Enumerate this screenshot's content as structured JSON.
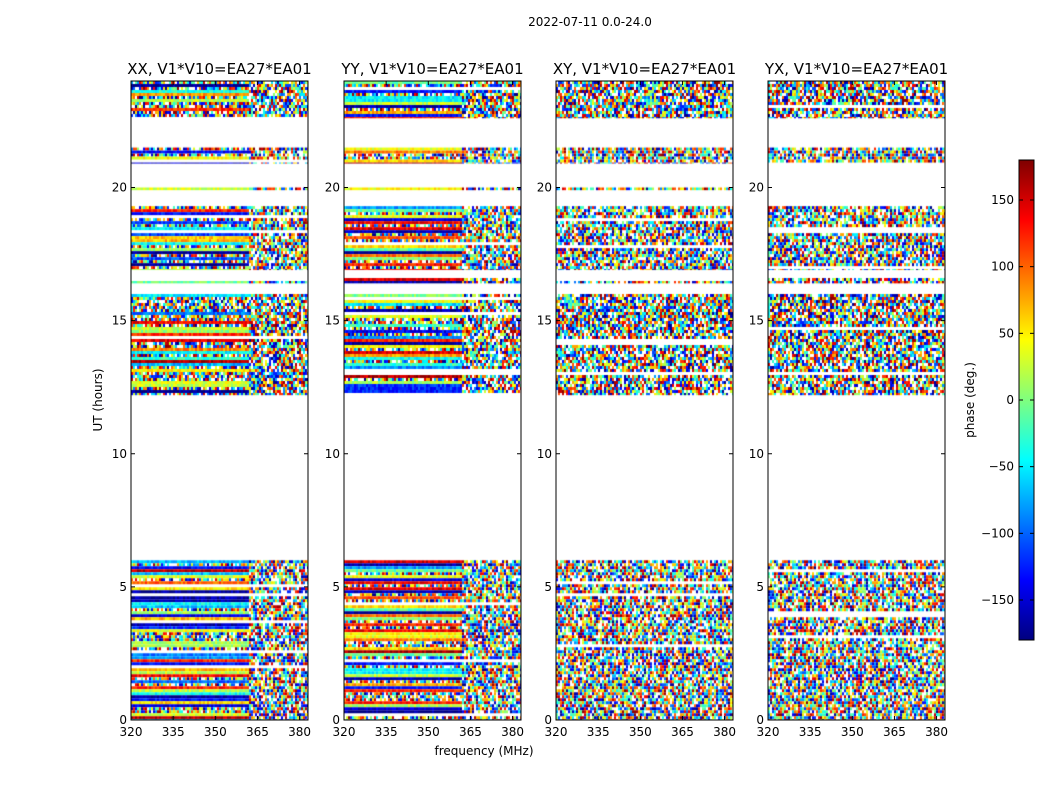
{
  "figure": {
    "suptitle": "2022-07-11 0.0-24.0",
    "xlabel": "frequency (MHz)",
    "ylabel": "UT (hours)",
    "colorbar_label": "phase (deg.)",
    "colorbar_ticks": [
      150,
      100,
      50,
      0,
      -50,
      -100,
      -150
    ],
    "colorbar_tick_labels": [
      "150",
      "100",
      "50",
      "0",
      "−50",
      "−100",
      "−150"
    ],
    "colorbar_range": [
      -180,
      180
    ],
    "colormap": [
      "#00007f",
      "#0000ff",
      "#007fff",
      "#00ffff",
      "#7fff7f",
      "#ffff00",
      "#ff7f00",
      "#ff0000",
      "#7f0000"
    ]
  },
  "chart_data": [
    {
      "type": "heatmap",
      "title": "XX, V1*V10=EA27*EA01",
      "xlim": [
        320,
        383
      ],
      "ylim": [
        0,
        24
      ],
      "xticks": [
        320,
        335,
        350,
        365,
        380
      ],
      "yticks": [
        0,
        5,
        10,
        15,
        20
      ],
      "value": "phase (deg.)",
      "observed_ut_ranges": [
        [
          0.0,
          6.0
        ],
        [
          12.2,
          16.0
        ],
        [
          16.4,
          16.6
        ],
        [
          16.9,
          19.3
        ],
        [
          19.9,
          20.0
        ],
        [
          20.9,
          21.5
        ],
        [
          22.6,
          24.0
        ]
      ],
      "noise_onset_mhz": 362
    },
    {
      "type": "heatmap",
      "title": "YY, V1*V10=EA27*EA01",
      "xlim": [
        320,
        383
      ],
      "ylim": [
        0,
        24
      ],
      "xticks": [
        320,
        335,
        350,
        365,
        380
      ],
      "yticks": [
        0,
        5,
        10,
        15,
        20
      ],
      "value": "phase (deg.)",
      "observed_ut_ranges": [
        [
          0.0,
          6.0
        ],
        [
          12.2,
          16.0
        ],
        [
          16.4,
          16.6
        ],
        [
          16.9,
          19.3
        ],
        [
          19.9,
          20.0
        ],
        [
          20.9,
          21.5
        ],
        [
          22.6,
          24.0
        ]
      ],
      "noise_onset_mhz": 362
    },
    {
      "type": "heatmap",
      "title": "XY, V1*V10=EA27*EA01",
      "xlim": [
        320,
        383
      ],
      "ylim": [
        0,
        24
      ],
      "xticks": [
        320,
        335,
        350,
        365,
        380
      ],
      "yticks": [
        0,
        5,
        10,
        15,
        20
      ],
      "value": "phase (deg.)",
      "observed_ut_ranges": [
        [
          0.0,
          6.0
        ],
        [
          12.2,
          16.0
        ],
        [
          16.4,
          16.6
        ],
        [
          16.9,
          19.3
        ],
        [
          19.9,
          20.0
        ],
        [
          20.9,
          21.5
        ],
        [
          22.6,
          24.0
        ]
      ],
      "noise_onset_mhz": 320
    },
    {
      "type": "heatmap",
      "title": "YX, V1*V10=EA27*EA01",
      "xlim": [
        320,
        383
      ],
      "ylim": [
        0,
        24
      ],
      "xticks": [
        320,
        335,
        350,
        365,
        380
      ],
      "yticks": [
        0,
        5,
        10,
        15,
        20
      ],
      "value": "phase (deg.)",
      "observed_ut_ranges": [
        [
          0.0,
          6.0
        ],
        [
          12.2,
          16.0
        ],
        [
          16.4,
          16.6
        ],
        [
          16.9,
          19.3
        ],
        [
          19.9,
          20.0
        ],
        [
          20.9,
          21.5
        ],
        [
          22.6,
          24.0
        ]
      ],
      "noise_onset_mhz": 320
    }
  ]
}
